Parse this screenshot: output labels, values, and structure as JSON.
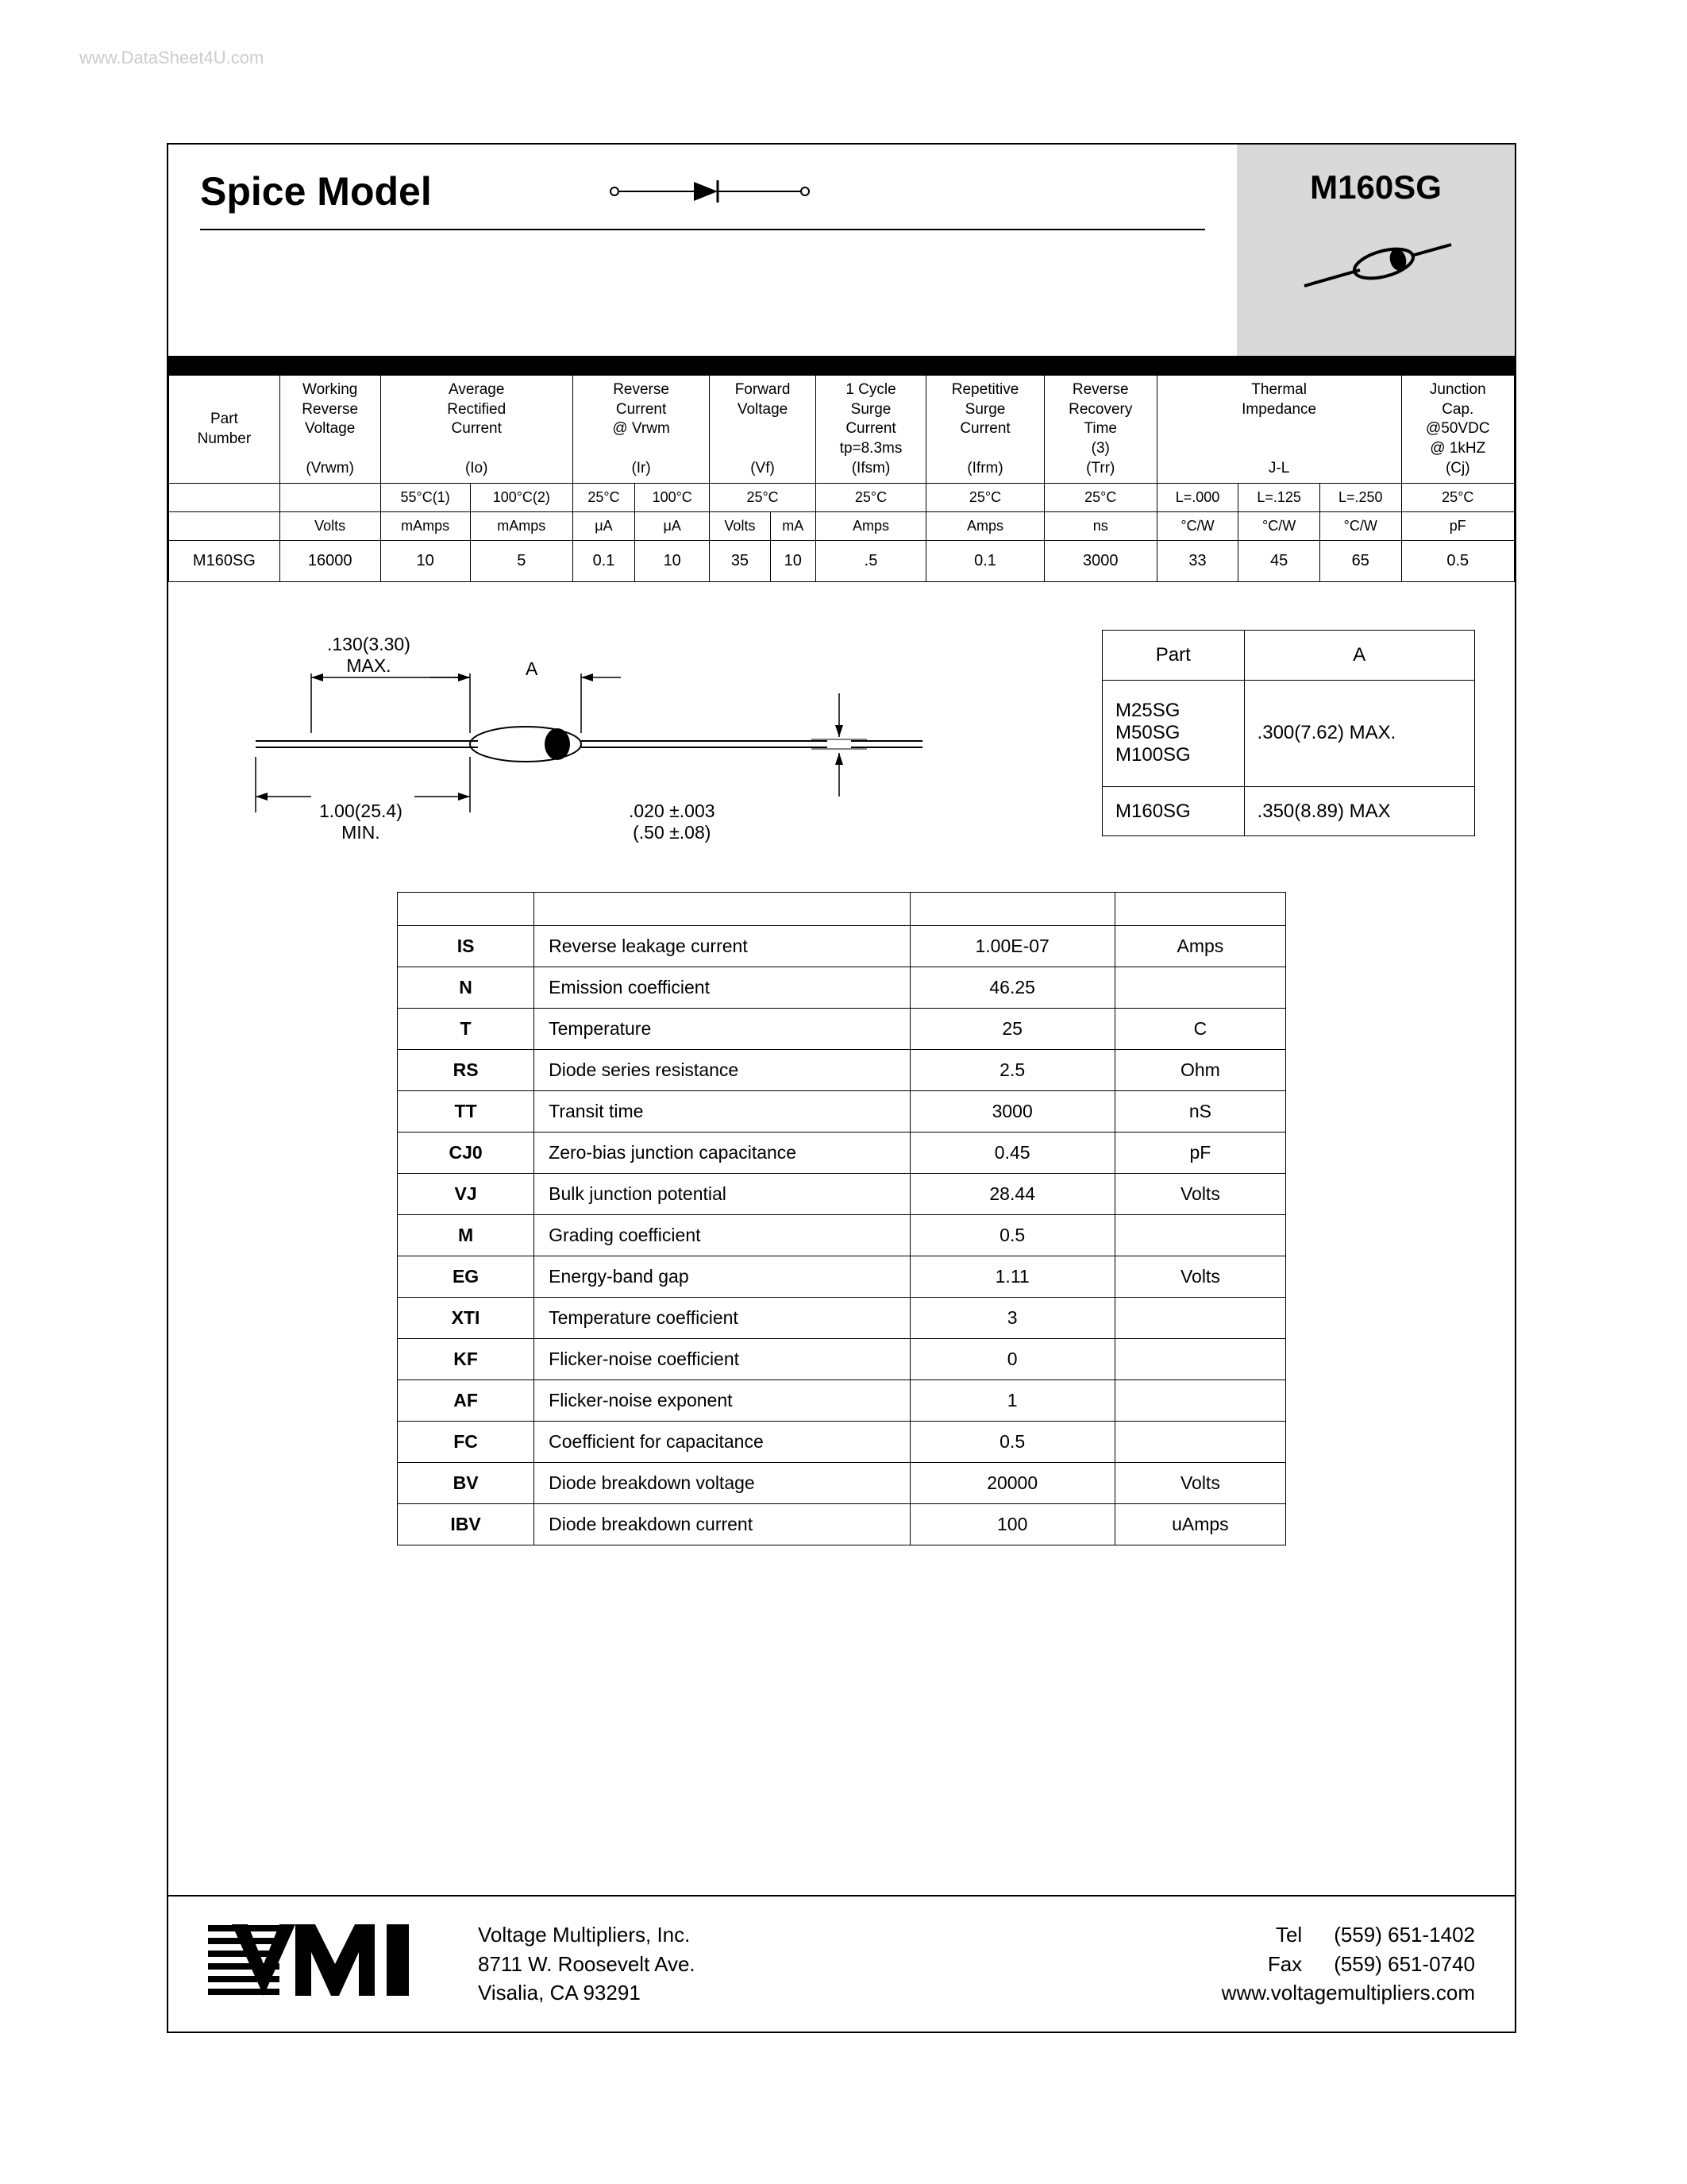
{
  "watermark": "www.DataSheet4U.com",
  "header": {
    "title": "Spice Model",
    "part_code": "M160SG"
  },
  "spec_table": {
    "headers": [
      {
        "label": "Part\nNumber",
        "sub_span": 1,
        "subs": [
          ""
        ],
        "units": [
          ""
        ]
      },
      {
        "label": "Working\nReverse\nVoltage\n\n(Vrwm)",
        "sub_span": 1,
        "subs": [
          ""
        ],
        "units": [
          "Volts"
        ]
      },
      {
        "label": "Average\nRectified\nCurrent\n\n(Io)",
        "sub_span": 2,
        "subs": [
          "55°C(1)",
          "100°C(2)"
        ],
        "units": [
          "mAmps",
          "mAmps"
        ]
      },
      {
        "label": "Reverse\nCurrent\n@ Vrwm\n\n(Ir)",
        "sub_span": 2,
        "subs": [
          "25°C",
          "100°C"
        ],
        "units": [
          "μA",
          "μA"
        ]
      },
      {
        "label": "Forward\nVoltage\n\n\n(Vf)",
        "sub_span": 2,
        "subs": [
          "25°C"
        ],
        "sub_colspan": 2,
        "units": [
          "Volts",
          "mA"
        ]
      },
      {
        "label": "1 Cycle\nSurge\nCurrent\ntp=8.3ms\n(Ifsm)",
        "sub_span": 1,
        "subs": [
          "25°C"
        ],
        "units": [
          "Amps"
        ]
      },
      {
        "label": "Repetitive\nSurge\nCurrent\n\n(Ifrm)",
        "sub_span": 1,
        "subs": [
          "25°C"
        ],
        "units": [
          "Amps"
        ]
      },
      {
        "label": "Reverse\nRecovery\nTime\n(3)\n(Trr)",
        "sub_span": 1,
        "subs": [
          "25°C"
        ],
        "units": [
          "ns"
        ]
      },
      {
        "label": "Thermal\nImpedance\n\n\nJ-L",
        "sub_span": 3,
        "subs": [
          "L=.000",
          "L=.125",
          "L=.250"
        ],
        "units": [
          "°C/W",
          "°C/W",
          "°C/W"
        ]
      },
      {
        "label": "Junction\nCap.\n@50VDC\n@ 1kHZ\n(Cj)",
        "sub_span": 1,
        "subs": [
          "25°C"
        ],
        "units": [
          "pF"
        ]
      }
    ],
    "row": [
      "M160SG",
      "16000",
      "10",
      "5",
      "0.1",
      "10",
      "35",
      "10",
      ".5",
      "0.1",
      "3000",
      "33",
      "45",
      "65",
      "0.5"
    ]
  },
  "drawing": {
    "dim1": ".130(3.30)\nMAX.",
    "dimA": "A",
    "dim2": "1.00(25.4)\nMIN.",
    "dim3": ".020 ±.003\n(.50 ±.08)"
  },
  "dim_table": {
    "headers": [
      "Part",
      "A"
    ],
    "rows": [
      {
        "parts": "M25SG\nM50SG\nM100SG",
        "a": ".300(7.62) MAX."
      },
      {
        "parts": "M160SG",
        "a": ".350(8.89) MAX"
      }
    ]
  },
  "spice_table": {
    "rows": [
      {
        "sym": "IS",
        "desc": "Reverse leakage current",
        "val": "1.00E-07",
        "unit": "Amps"
      },
      {
        "sym": "N",
        "desc": "Emission coefficient",
        "val": "46.25",
        "unit": ""
      },
      {
        "sym": "T",
        "desc": "Temperature",
        "val": "25",
        "unit": "C"
      },
      {
        "sym": "RS",
        "desc": "Diode series resistance",
        "val": "2.5",
        "unit": "Ohm"
      },
      {
        "sym": "TT",
        "desc": "Transit time",
        "val": "3000",
        "unit": "nS"
      },
      {
        "sym": "CJ0",
        "desc": "Zero-bias junction capacitance",
        "val": "0.45",
        "unit": "pF"
      },
      {
        "sym": "VJ",
        "desc": "Bulk junction potential",
        "val": "28.44",
        "unit": "Volts"
      },
      {
        "sym": "M",
        "desc": "Grading coefficient",
        "val": "0.5",
        "unit": ""
      },
      {
        "sym": "EG",
        "desc": "Energy-band gap",
        "val": "1.11",
        "unit": "Volts"
      },
      {
        "sym": "XTI",
        "desc": "Temperature coefficient",
        "val": "3",
        "unit": ""
      },
      {
        "sym": "KF",
        "desc": "Flicker-noise coefficient",
        "val": "0",
        "unit": ""
      },
      {
        "sym": "AF",
        "desc": "Flicker-noise exponent",
        "val": "1",
        "unit": ""
      },
      {
        "sym": "FC",
        "desc": "Coefficient for capacitance",
        "val": "0.5",
        "unit": ""
      },
      {
        "sym": "BV",
        "desc": "Diode breakdown voltage",
        "val": "20000",
        "unit": "Volts"
      },
      {
        "sym": "IBV",
        "desc": "Diode breakdown current",
        "val": "100",
        "unit": "uAmps"
      }
    ]
  },
  "footer": {
    "company": "Voltage Multipliers, Inc.",
    "addr1": "8711 W. Roosevelt Ave.",
    "addr2": "Visalia, CA  93291",
    "tel_label": "Tel",
    "tel": "(559) 651-1402",
    "fax_label": "Fax",
    "fax": "(559) 651-0740",
    "web": "www.voltagemultipliers.com"
  }
}
